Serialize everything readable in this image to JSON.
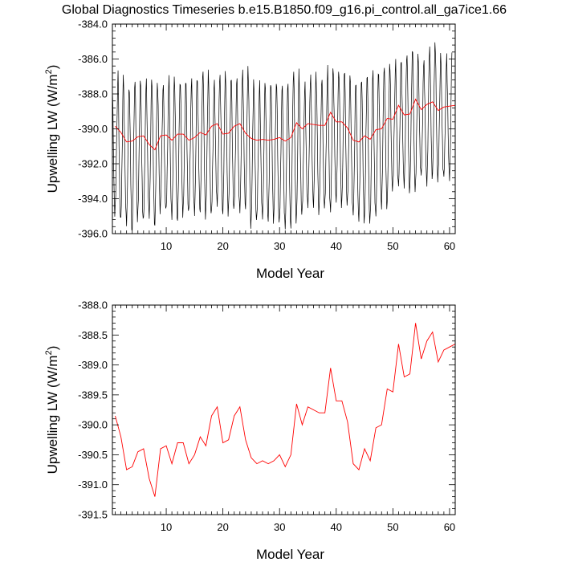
{
  "title": "Global Diagnostics Timeseries b.e15.B1850.f09_g16.pi_control.all_ga7ice1.66",
  "chart_data": [
    {
      "type": "line",
      "xlabel": "Model Year",
      "ylabel": "Upwelling LW (W/m",
      "ylabel_sup": "2",
      "ylabel_end": ")",
      "xlim": [
        0.5,
        61
      ],
      "ylim": [
        -396.0,
        -384.0
      ],
      "xticks": [
        10,
        20,
        30,
        40,
        50,
        60
      ],
      "yticks": [
        -396.0,
        -394.0,
        -392.0,
        -390.0,
        -388.0,
        -386.0,
        -384.0
      ],
      "ytick_labels": [
        "-396.0",
        "-394.0",
        "-392.0",
        "-390.0",
        "-388.0",
        "-386.0",
        "-384.0"
      ],
      "monthly": {
        "year_start": 0.5,
        "months_per_year": 12,
        "color": "#000000",
        "peak": [
          -387.5,
          -386.3,
          -387.4,
          -387.6,
          -387.0,
          -387.2,
          -386.8,
          -387.3,
          -387.6,
          -387.2,
          -386.6,
          -387.4,
          -387.2,
          -387.1,
          -386.8,
          -387.0,
          -386.4,
          -387.2,
          -386.9,
          -386.6,
          -387.1,
          -386.9,
          -386.8,
          -386.3,
          -387.0,
          -387.5,
          -386.9,
          -387.4,
          -387.3,
          -387.3,
          -387.2,
          -387.1,
          -386.4,
          -387.5,
          -387.0,
          -386.6,
          -387.4,
          -386.9,
          -386.0,
          -386.6,
          -386.8,
          -386.5,
          -387.0,
          -387.2,
          -387.0,
          -386.7,
          -386.3,
          -386.6,
          -386.2,
          -386.4,
          -385.7,
          -385.9,
          -385.5,
          -385.3,
          -385.9,
          -385.8,
          -385.0,
          -385.3,
          -386.0,
          -385.4
        ],
        "trough": [
          -394.7,
          -395.5,
          -395.4,
          -395.6,
          -395.0,
          -395.5,
          -395.0,
          -395.3,
          -394.5,
          -394.9,
          -395.1,
          -395.0,
          -394.7,
          -395.0,
          -394.9,
          -394.5,
          -394.8,
          -395.1,
          -394.4,
          -394.6,
          -394.6,
          -394.8,
          -394.8,
          -394.3,
          -395.3,
          -395.4,
          -395.2,
          -395.0,
          -395.0,
          -395.5,
          -395.8,
          -395.4,
          -395.0,
          -395.0,
          -394.6,
          -394.2,
          -394.5,
          -394.6,
          -394.9,
          -393.9,
          -394.1,
          -394.4,
          -395.1,
          -395.0,
          -395.0,
          -395.4,
          -395.2,
          -394.3,
          -394.2,
          -393.5,
          -393.5,
          -393.1,
          -393.3,
          -393.5,
          -392.9,
          -393.0,
          -392.5,
          -392.9,
          -393.0,
          -392.7
        ]
      },
      "series": [
        {
          "color": "#ff0000",
          "x": [
            1,
            2,
            3,
            4,
            5,
            6,
            7,
            8,
            9,
            10,
            11,
            12,
            13,
            14,
            15,
            16,
            17,
            18,
            19,
            20,
            21,
            22,
            23,
            24,
            25,
            26,
            27,
            28,
            29,
            30,
            31,
            32,
            33,
            34,
            35,
            36,
            37,
            38,
            39,
            40,
            41,
            42,
            43,
            44,
            45,
            46,
            47,
            48,
            49,
            50,
            51,
            52,
            53,
            54,
            55,
            56,
            57,
            58,
            59,
            60,
            61
          ],
          "y": [
            -389.85,
            -390.2,
            -390.75,
            -390.7,
            -390.45,
            -390.4,
            -390.9,
            -391.2,
            -390.4,
            -390.35,
            -390.65,
            -390.3,
            -390.3,
            -390.65,
            -390.5,
            -390.2,
            -390.35,
            -389.85,
            -389.7,
            -390.3,
            -390.25,
            -389.85,
            -389.7,
            -390.25,
            -390.55,
            -390.65,
            -390.6,
            -390.65,
            -390.6,
            -390.5,
            -390.7,
            -390.5,
            -389.65,
            -390.0,
            -389.7,
            -389.75,
            -389.8,
            -389.8,
            -389.05,
            -389.6,
            -389.6,
            -389.95,
            -390.65,
            -390.75,
            -390.4,
            -390.6,
            -390.05,
            -390.0,
            -389.4,
            -389.45,
            -388.65,
            -389.2,
            -389.15,
            -388.3,
            -388.9,
            -388.6,
            -388.45,
            -388.95,
            -388.75,
            -388.7,
            -388.65
          ]
        }
      ]
    },
    {
      "type": "line",
      "xlabel": "Model Year",
      "ylabel": "Upwelling LW (W/m",
      "ylabel_sup": "2",
      "ylabel_end": ")",
      "xlim": [
        0.5,
        61
      ],
      "ylim": [
        -391.5,
        -388.0
      ],
      "xticks": [
        10,
        20,
        30,
        40,
        50,
        60
      ],
      "yticks": [
        -391.5,
        -391.0,
        -390.5,
        -390.0,
        -389.5,
        -389.0,
        -388.5,
        -388.0
      ],
      "ytick_labels": [
        "-391.5",
        "-391.0",
        "-390.5",
        "-390.0",
        "-389.5",
        "-389.0",
        "-388.5",
        "-388.0"
      ],
      "series": [
        {
          "color": "#ff0000",
          "x": [
            1,
            2,
            3,
            4,
            5,
            6,
            7,
            8,
            9,
            10,
            11,
            12,
            13,
            14,
            15,
            16,
            17,
            18,
            19,
            20,
            21,
            22,
            23,
            24,
            25,
            26,
            27,
            28,
            29,
            30,
            31,
            32,
            33,
            34,
            35,
            36,
            37,
            38,
            39,
            40,
            41,
            42,
            43,
            44,
            45,
            46,
            47,
            48,
            49,
            50,
            51,
            52,
            53,
            54,
            55,
            56,
            57,
            58,
            59,
            60,
            61
          ],
          "y": [
            -389.85,
            -390.2,
            -390.75,
            -390.7,
            -390.45,
            -390.4,
            -390.9,
            -391.2,
            -390.4,
            -390.35,
            -390.65,
            -390.3,
            -390.3,
            -390.65,
            -390.5,
            -390.2,
            -390.35,
            -389.85,
            -389.7,
            -390.3,
            -390.25,
            -389.85,
            -389.7,
            -390.25,
            -390.55,
            -390.65,
            -390.6,
            -390.65,
            -390.6,
            -390.5,
            -390.7,
            -390.5,
            -389.65,
            -390.0,
            -389.7,
            -389.75,
            -389.8,
            -389.8,
            -389.05,
            -389.6,
            -389.6,
            -389.95,
            -390.65,
            -390.75,
            -390.4,
            -390.6,
            -390.05,
            -390.0,
            -389.4,
            -389.45,
            -388.65,
            -389.2,
            -389.15,
            -388.3,
            -388.9,
            -388.6,
            -388.45,
            -388.95,
            -388.75,
            -388.7,
            -388.65
          ]
        }
      ]
    }
  ]
}
